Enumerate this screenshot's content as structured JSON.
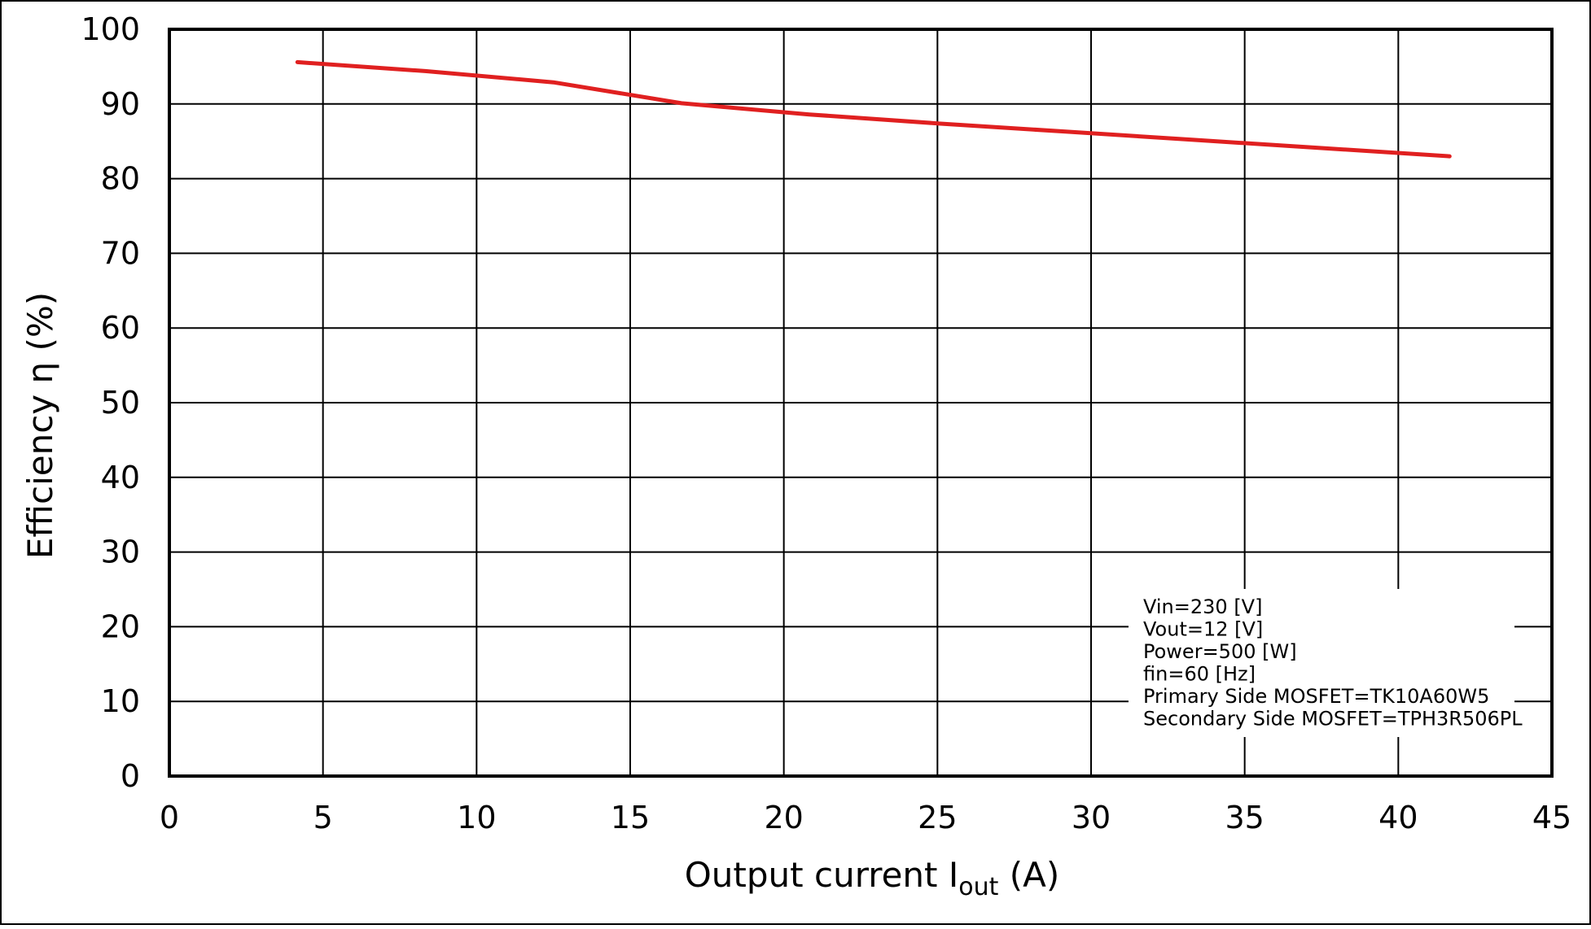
{
  "chart_data": {
    "type": "line",
    "title": "",
    "xlabel": {
      "main": "Output current  I",
      "subscript": "out",
      "suffix": " (A)"
    },
    "ylabel": "Efficiency  η (%)",
    "xlim": [
      0,
      45
    ],
    "ylim": [
      0,
      100
    ],
    "xticks": [
      0,
      5,
      10,
      15,
      20,
      25,
      30,
      35,
      40,
      45
    ],
    "yticks": [
      0,
      10,
      20,
      30,
      40,
      50,
      60,
      70,
      80,
      90,
      100
    ],
    "grid": true,
    "series": [
      {
        "color": "#e02020",
        "x": [
          4.17,
          8.33,
          12.5,
          16.67,
          20.83,
          25.0,
          29.17,
          33.33,
          37.5,
          41.67
        ],
        "y": [
          95.6,
          94.4,
          92.9,
          90.1,
          88.6,
          87.4,
          86.3,
          85.2,
          84.1,
          83.0
        ]
      }
    ],
    "annotation": {
      "lines": [
        "Vin=230 [V]",
        "Vout=12 [V]",
        "Power=500 [W]",
        "fin=60 [Hz]",
        "Primary Side MOSFET=TK10A60W5",
        "Secondary Side MOSFET=TPH3R506PL"
      ],
      "position": "bottom-right"
    }
  }
}
